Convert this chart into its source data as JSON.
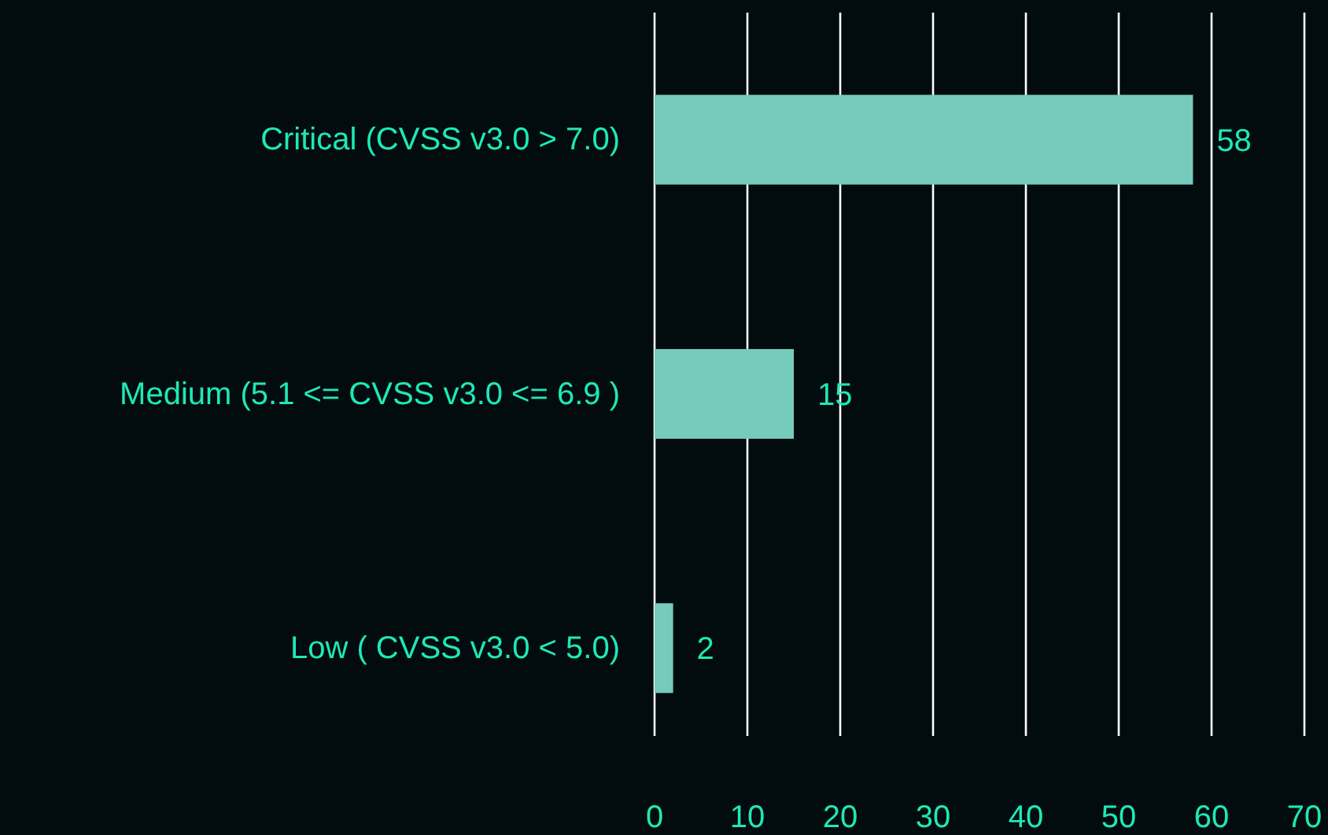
{
  "chart_data": {
    "type": "bar",
    "orientation": "horizontal",
    "categories": [
      "Critical (CVSS v3.0 > 7.0)",
      "Medium (5.1 <= CVSS v3.0 <= 6.9 )",
      "Low ( CVSS v3.0 < 5.0)"
    ],
    "values": [
      58,
      15,
      2
    ],
    "color": "#76cbbd",
    "xlim": [
      0,
      70
    ],
    "xticks": [
      0,
      10,
      20,
      30,
      40,
      50,
      60,
      70
    ],
    "grid": "x",
    "data_labels": true
  }
}
